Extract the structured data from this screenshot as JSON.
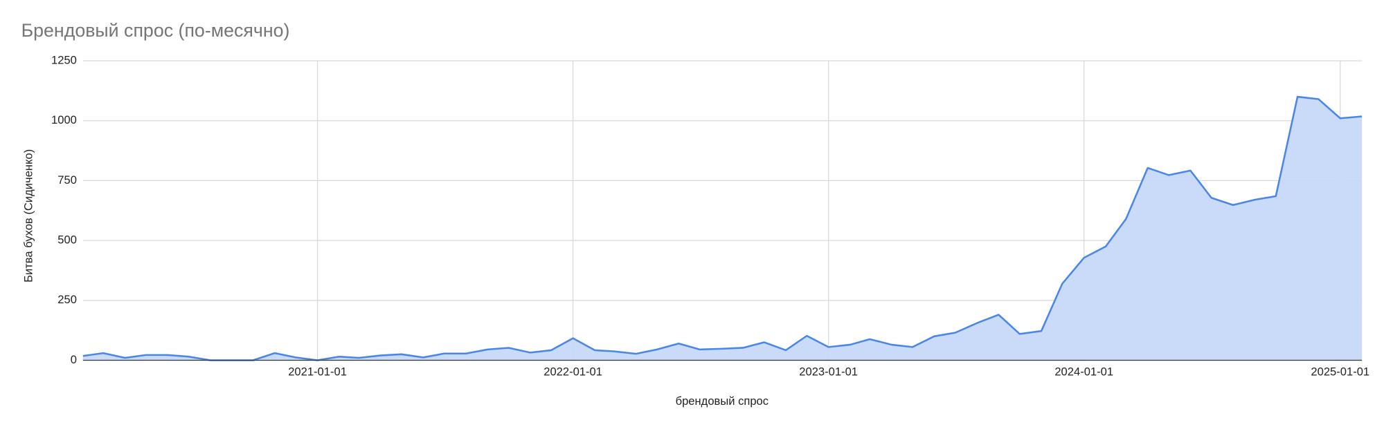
{
  "chart_data": {
    "type": "area",
    "title": "Брендовый спрос (по-месячно)",
    "x_label": "брендовый спрос",
    "y_label": "Битва бухов (Сидиченко)",
    "x": [
      "2020-02-01",
      "2020-03-01",
      "2020-04-01",
      "2020-05-01",
      "2020-06-01",
      "2020-07-01",
      "2020-08-01",
      "2020-09-01",
      "2020-10-01",
      "2020-11-01",
      "2020-12-01",
      "2021-01-01",
      "2021-02-01",
      "2021-03-01",
      "2021-04-01",
      "2021-05-01",
      "2021-06-01",
      "2021-07-01",
      "2021-08-01",
      "2021-09-01",
      "2021-10-01",
      "2021-11-01",
      "2021-12-01",
      "2022-01-01",
      "2022-02-01",
      "2022-03-01",
      "2022-04-01",
      "2022-05-01",
      "2022-06-01",
      "2022-07-01",
      "2022-08-01",
      "2022-09-01",
      "2022-10-01",
      "2022-11-01",
      "2022-12-01",
      "2023-01-01",
      "2023-02-01",
      "2023-03-01",
      "2023-04-01",
      "2023-05-01",
      "2023-06-01",
      "2023-07-01",
      "2023-08-01",
      "2023-09-01",
      "2023-10-01",
      "2023-11-01",
      "2023-12-01",
      "2024-01-01",
      "2024-02-01",
      "2024-03-01",
      "2024-04-01",
      "2024-05-01",
      "2024-06-01",
      "2024-07-01",
      "2024-08-01",
      "2024-09-01",
      "2024-10-01",
      "2024-11-01",
      "2024-12-01",
      "2025-01-01",
      "2025-02-01"
    ],
    "series": [
      {
        "name": "брендовый спрос",
        "color": "#4a86e8",
        "fill": "#c6d9f9",
        "values": [
          18,
          30,
          10,
          22,
          22,
          15,
          0,
          0,
          0,
          30,
          12,
          0,
          15,
          10,
          20,
          25,
          12,
          28,
          28,
          45,
          52,
          32,
          42,
          92,
          42,
          37,
          27,
          45,
          70,
          45,
          48,
          52,
          75,
          42,
          102,
          55,
          65,
          88,
          65,
          55,
          100,
          115,
          155,
          190,
          110,
          122,
          320,
          428,
          475,
          590,
          803,
          773,
          792,
          678,
          648,
          670,
          685,
          1100,
          1090,
          1010,
          1018
        ]
      }
    ],
    "xlim": [
      "2020-02-01",
      "2025-02-01"
    ],
    "xticks": [
      "2021-01-01",
      "2022-01-01",
      "2023-01-01",
      "2024-01-01",
      "2025-01-01"
    ],
    "ylim": [
      0,
      1250
    ],
    "yticks": [
      0,
      250,
      500,
      750,
      1000,
      1250
    ],
    "grid": true
  }
}
